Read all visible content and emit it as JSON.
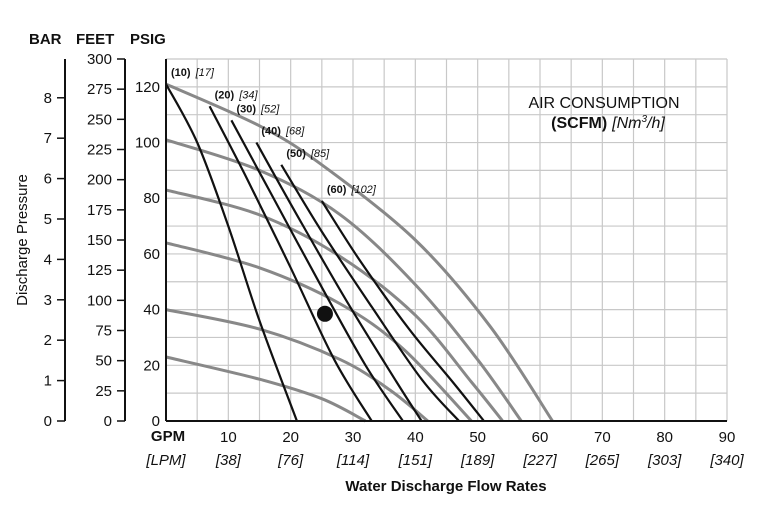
{
  "chart_data": {
    "type": "line",
    "xlabel": "Water Discharge Flow Rates",
    "ylabel": "Discharge Pressure",
    "x_axis": {
      "unit_label": "GPM",
      "alt_unit_label": "[LPM]",
      "range": [
        0,
        90
      ],
      "ticks": [
        10,
        20,
        30,
        40,
        50,
        60,
        70,
        80,
        90
      ],
      "alt_ticks": [
        "[38]",
        "[76]",
        "[114]",
        "[151]",
        "[189]",
        "[227]",
        "[265]",
        "[303]",
        "[340]"
      ]
    },
    "y_axis_psig": {
      "label": "PSIG",
      "range": [
        0,
        130
      ],
      "ticks": [
        0,
        20,
        40,
        60,
        80,
        100,
        120
      ]
    },
    "y_axis_feet": {
      "label": "FEET",
      "range": [
        0,
        300
      ],
      "ticks": [
        0,
        25,
        50,
        75,
        100,
        125,
        150,
        175,
        200,
        225,
        250,
        275,
        300
      ]
    },
    "y_axis_bar": {
      "label": "BAR",
      "range": [
        0,
        8.96
      ],
      "ticks": [
        0,
        1,
        2,
        3,
        4,
        5,
        6,
        7,
        8
      ]
    },
    "grid": true,
    "legend": {
      "title": "AIR CONSUMPTION",
      "subtitle_bold": "(SCFM)",
      "subtitle_italic_pre": "[Nm",
      "subtitle_italic_sup": "3",
      "subtitle_italic_post": "/h]",
      "position": "top-right"
    },
    "operating_point": {
      "x": 25.5,
      "y": 38.5
    },
    "pressure_curves": [
      {
        "points": [
          [
            0,
            121
          ],
          [
            15,
            106
          ],
          [
            25,
            92
          ],
          [
            40,
            65
          ],
          [
            52,
            34
          ],
          [
            62,
            0
          ]
        ]
      },
      {
        "points": [
          [
            0,
            101
          ],
          [
            15,
            90
          ],
          [
            28,
            74
          ],
          [
            40,
            49
          ],
          [
            50,
            22
          ],
          [
            57,
            0
          ]
        ]
      },
      {
        "points": [
          [
            0,
            83
          ],
          [
            15,
            74
          ],
          [
            28,
            59
          ],
          [
            40,
            38
          ],
          [
            49,
            14
          ],
          [
            54,
            0
          ]
        ]
      },
      {
        "points": [
          [
            0,
            64
          ],
          [
            15,
            55
          ],
          [
            28,
            42
          ],
          [
            38,
            26
          ],
          [
            49,
            0
          ]
        ]
      },
      {
        "points": [
          [
            0,
            40
          ],
          [
            15,
            33
          ],
          [
            28,
            22
          ],
          [
            36,
            11
          ],
          [
            42,
            0
          ]
        ]
      },
      {
        "points": [
          [
            0,
            23
          ],
          [
            15,
            15
          ],
          [
            25,
            8
          ],
          [
            32,
            0
          ]
        ]
      }
    ],
    "air_curves": [
      {
        "scfm": "(10)",
        "nm3h": "[17]",
        "points": [
          [
            0,
            121
          ],
          [
            5,
            100
          ],
          [
            10,
            70
          ],
          [
            15,
            36
          ],
          [
            21,
            0
          ]
        ]
      },
      {
        "scfm": "(20)",
        "nm3h": "[34]",
        "points": [
          [
            7,
            113
          ],
          [
            13,
            87
          ],
          [
            20,
            55
          ],
          [
            27,
            22
          ],
          [
            33,
            0
          ]
        ]
      },
      {
        "scfm": "(30)",
        "nm3h": "[52]",
        "points": [
          [
            10.5,
            108
          ],
          [
            17,
            81
          ],
          [
            25,
            48
          ],
          [
            32,
            20
          ],
          [
            38,
            0
          ]
        ]
      },
      {
        "scfm": "(40)",
        "nm3h": "[68]",
        "points": [
          [
            14.5,
            100
          ],
          [
            21,
            74
          ],
          [
            29,
            43
          ],
          [
            37,
            14
          ],
          [
            41,
            0
          ]
        ]
      },
      {
        "scfm": "(50)",
        "nm3h": "[85]",
        "points": [
          [
            18.5,
            92
          ],
          [
            25,
            68
          ],
          [
            33,
            41
          ],
          [
            41,
            15
          ],
          [
            47,
            0
          ]
        ]
      },
      {
        "scfm": "(60)",
        "nm3h": "[102]",
        "points": [
          [
            25,
            79
          ],
          [
            31,
            58
          ],
          [
            39,
            33
          ],
          [
            46,
            14
          ],
          [
            51,
            0
          ]
        ]
      }
    ],
    "colors": {
      "pressure_curve": "#888888",
      "air_curve": "#111111",
      "grid": "#c8c8c8",
      "axis": "#111111"
    }
  }
}
